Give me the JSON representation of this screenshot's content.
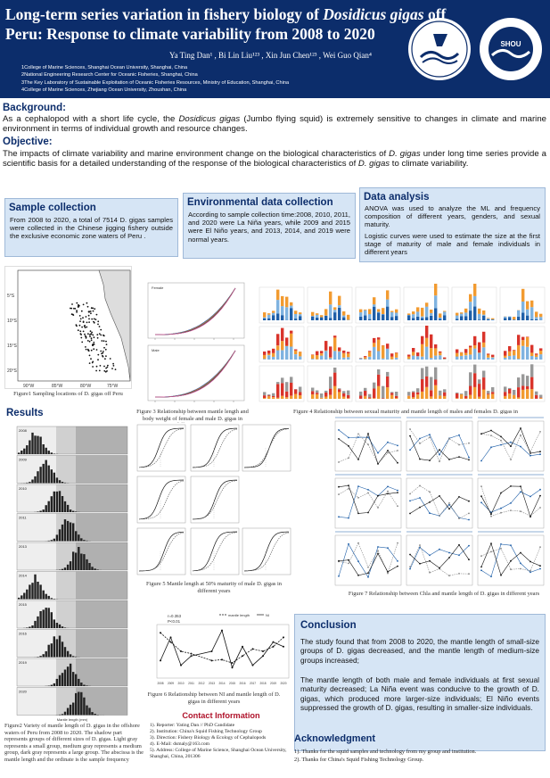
{
  "header": {
    "title_line1": "Long-term series variation in fishery biology of ",
    "title_species": "Dosidicus gigas",
    "title_line1_end": " off",
    "title_line2": "Peru: Response to climate variability from 2008 to 2020",
    "authors": "Ya Ting Dan¹ , Bi Lin Liu¹²³ , Xin Jun Chen¹²³ , Wei Guo Qian⁴",
    "affiliations": [
      "1College of Marine Sciences, Shanghai Ocean University, Shanghai, China",
      "2National Engineering Research Center for Oceanic Fisheries, Shanghai, China",
      "3The Key Laboratory of Sustainable Exploitation of Oceanic Fisheries Resources, Ministry of Education, Shanghai, China",
      "4College of Marine Sciences, Zhejiang Ocean University, Zhoushan, China"
    ],
    "logo1_text": "上海海洋大学 SHANGHAI OCEAN UNIVERSITY",
    "logo2_text": "College of Marine Science 海洋科学学院 1912"
  },
  "background": {
    "heading": "Background:",
    "text_a": "As a cephalopod with a short life cycle, the ",
    "species": "Dosidicus gigas",
    "text_b": " (Jumbo flying squid) is extremely sensitive to changes in climate and marine environment in terms of individual growth and resource changes."
  },
  "objective": {
    "heading": "Objective:",
    "text_a": "The impacts of climate variability and marine environment change on the biological characteristics of ",
    "species": "D. gigas",
    "text_b": " under long time series provide a scientific basis for a detailed understanding of the response of the biological characteristics of ",
    "species2": "D. gigas",
    "text_c": " to climate variability."
  },
  "sample_collection": {
    "heading": "Sample collection",
    "text": "From 2008 to 2020, a total of 7514 D. gigas samples were collected in the Chinese jigging fishery outside the exclusive economic zone waters of Peru ."
  },
  "env_collection": {
    "heading": "Environmental data collection",
    "text": "According to sample collection time:2008, 2010, 2011, and 2020 were La Niña years, while 2009 and 2015 were El Niño years, and 2013, 2014, and 2019 were normal years."
  },
  "data_analysis": {
    "heading": "Data analysis",
    "text1": "ANOVA was used to analyze the ML and frequency composition of different years, genders, and sexual maturity.",
    "text2": "Logistic curves were used to estimate the size at the first stage of maturity of male and female individuals in different years"
  },
  "figures": {
    "fig1_caption": "Figure1 Sampling locations of D. gigas off Peru",
    "fig1_lat_labels": [
      "5°S",
      "10°S",
      "15°S",
      "20°S"
    ],
    "fig1_lon_labels": [
      "90°W",
      "85°W",
      "80°W",
      "75°W"
    ],
    "fig3_caption": "Figure 3 Relationship between mantle length and body weight of female and male D. gigas in different years",
    "fig3_panel_labels": [
      "Female",
      "Male"
    ],
    "fig4_caption": "Figure 4 Relationship between sexual maturity and mantle length of males and females D. gigas in different years",
    "fig5_caption": "Figure 5 Mantle length at 50% maturity of male D. gigas in different years",
    "fig6_caption": "Figure 6 Relationship between NI and mantle length of D. gigas in different years",
    "fig6_stats": [
      "r=0.353",
      "P<0.01"
    ],
    "fig6_legend": [
      "mantle length",
      "NI"
    ],
    "fig6_years": [
      "2008",
      "2009",
      "2010",
      "2011",
      "2012",
      "2013",
      "2014",
      "2015",
      "2016",
      "2017",
      "2018",
      "2019",
      "2020"
    ],
    "fig7_caption": "Figure 7 Relationship between Chla and mantle length of D. gigas in different years",
    "fig2_caption": "Figure2 Variety of mantle length of D. gigas in the offshore waters of Peru from 2008 to 2020. The shadow part represents groups of different sizes of D. gigas. Light gray represents a small group, medium gray represents a medium group, dark gray represents a large group. The abscissa is the mantle length and the ordinate is the sample frequency",
    "fig2_years": [
      "2008",
      "2009",
      "2010",
      "2011",
      "2013",
      "2014",
      "2015",
      "2016",
      "2019",
      "2020"
    ],
    "fig2_xlabel": "Mantle length (mm)"
  },
  "results": {
    "heading": "Results"
  },
  "contact": {
    "heading": "Contact Information",
    "lines": [
      "1). Reporter: Yating Dan // PhD Candidate",
      "2). Institution: China's Squid Fishing Technology Group",
      "3). Direction: Fishery Biology & Ecology of Cephalopods",
      "4). E-Mail: dsmaly@163.com",
      "5). Address: College of Marine Science, Shanghai Ocean University, Shanghai, China, 201306"
    ]
  },
  "conclusion": {
    "heading": "Conclusion",
    "p1": "The study found that from 2008 to 2020, the mantle length of small-size groups of D. gigas decreased, and the mantle length of medium-size groups increased;",
    "p2": "The mantle length of both male and female individuals at first sexual maturity decreased; La Niña event was conducive to the growth of D. gigas, which produced more larger-size individuals; El Niño events suppressed the growth of D. gigas, resulting in smaller-size individuals."
  },
  "acknowledgment": {
    "heading": "Acknowledgment",
    "lines": [
      "1). Thanks for the squid samples and technology from my group and institution.",
      "2). Thanks for China's Squid Fishing Technology Group."
    ]
  },
  "colors": {
    "header_bg": "#0c2d6b",
    "box_bg": "#d6e5f5",
    "heading": "#0c2d6b"
  }
}
